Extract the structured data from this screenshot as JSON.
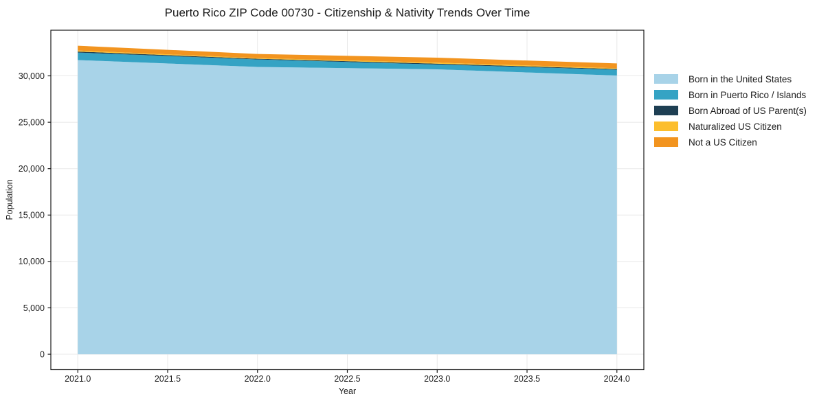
{
  "chart_data": {
    "type": "area",
    "stacked": true,
    "title": "Puerto Rico ZIP Code 00730 - Citizenship & Nativity Trends Over Time",
    "xlabel": "Year",
    "ylabel": "Population",
    "x": [
      2021,
      2022,
      2023,
      2024
    ],
    "series": [
      {
        "name": "Born in the United States",
        "color": "#A8D3E8",
        "values": [
          31700,
          30960,
          30700,
          30040
        ]
      },
      {
        "name": "Born in Puerto Rico / Islands",
        "color": "#35A3C4",
        "values": [
          810,
          810,
          520,
          630
        ]
      },
      {
        "name": "Born Abroad of US Parent(s)",
        "color": "#1E3F53",
        "values": [
          110,
          70,
          100,
          70
        ]
      },
      {
        "name": "Naturalized US Citizen",
        "color": "#FCBE2D",
        "values": [
          110,
          80,
          110,
          80
        ]
      },
      {
        "name": "Not a US Citizen",
        "color": "#F2941F",
        "values": [
          520,
          440,
          530,
          520
        ]
      }
    ],
    "totals": [
      33250,
      32360,
      31960,
      31340
    ],
    "xlim": [
      2020.85,
      2024.15
    ],
    "ylim": [
      -1660,
      34920
    ],
    "xticks": [
      {
        "label": "2021.0",
        "value": 2021.0
      },
      {
        "label": "2021.5",
        "value": 2021.5
      },
      {
        "label": "2022.0",
        "value": 2022.0
      },
      {
        "label": "2022.5",
        "value": 2022.5
      },
      {
        "label": "2023.0",
        "value": 2023.0
      },
      {
        "label": "2023.5",
        "value": 2023.5
      },
      {
        "label": "2024.0",
        "value": 2024.0
      }
    ],
    "yticks": [
      {
        "label": "0",
        "value": 0
      },
      {
        "label": "5,000",
        "value": 5000
      },
      {
        "label": "10,000",
        "value": 10000
      },
      {
        "label": "15,000",
        "value": 15000
      },
      {
        "label": "20,000",
        "value": 20000
      },
      {
        "label": "25,000",
        "value": 25000
      },
      {
        "label": "30,000",
        "value": 30000
      }
    ],
    "grid": true,
    "grid_color": "#e8e8e8",
    "spine_color": "#1a1a1a",
    "legend_position": "right-outside"
  }
}
